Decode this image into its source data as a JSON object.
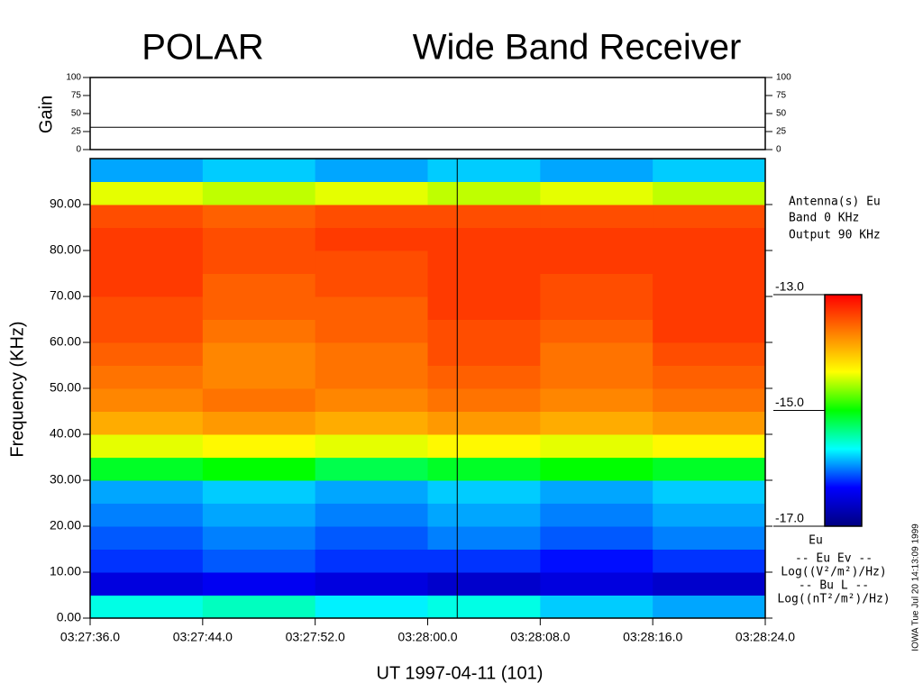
{
  "chart_data": {
    "type": "heatmap",
    "title_left": "POLAR",
    "title_right": "Wide Band Receiver",
    "xlabel": "UT 1997-04-11  (101)",
    "ylabel": "Frequency (KHz)",
    "xlim": [
      "03:27:36.0",
      "03:28:24.0"
    ],
    "xticks": [
      "03:27:36.0",
      "03:27:44.0",
      "03:27:52.0",
      "03:28:00.0",
      "03:28:08.0",
      "03:28:16.0",
      "03:28:24.0"
    ],
    "xbins": [
      "03:27:36.0",
      "03:27:44.0",
      "03:27:52.0",
      "03:28:00.0",
      "03:28:08.0",
      "03:28:16.0",
      "03:28:24.0"
    ],
    "ylim": [
      0,
      100
    ],
    "yticks": [
      {
        "value": 0,
        "label": "0.00"
      },
      {
        "value": 10,
        "label": "10.00"
      },
      {
        "value": 20,
        "label": "20.00"
      },
      {
        "value": 30,
        "label": "30.00"
      },
      {
        "value": 40,
        "label": "40.00"
      },
      {
        "value": 50,
        "label": "50.00"
      },
      {
        "value": 60,
        "label": "60.00"
      },
      {
        "value": 70,
        "label": "70.00"
      },
      {
        "value": 80,
        "label": "80.00"
      },
      {
        "value": 90,
        "label": "90.00"
      }
    ],
    "ybins": [
      0,
      5,
      10,
      15,
      20,
      25,
      30,
      35,
      40,
      45,
      50,
      55,
      60,
      65,
      70,
      75,
      80,
      85,
      90,
      95,
      100
    ],
    "z": [
      [
        -15.6,
        -15.5,
        -15.7,
        -15.6,
        -15.8,
        -15.9
      ],
      [
        -16.5,
        -16.4,
        -16.5,
        -16.6,
        -16.5,
        -16.6
      ],
      [
        -16.2,
        -16.1,
        -16.2,
        -16.2,
        -16.3,
        -16.2
      ],
      [
        -16.1,
        -16.0,
        -16.1,
        -16.0,
        -16.1,
        -16.0
      ],
      [
        -16.0,
        -15.9,
        -16.0,
        -15.9,
        -16.0,
        -15.9
      ],
      [
        -15.9,
        -15.8,
        -15.9,
        -15.8,
        -15.9,
        -15.8
      ],
      [
        -15.1,
        -15.0,
        -15.2,
        -15.1,
        -15.0,
        -15.1
      ],
      [
        -14.4,
        -14.3,
        -14.4,
        -14.3,
        -14.4,
        -14.3
      ],
      [
        -13.9,
        -13.8,
        -13.9,
        -13.8,
        -13.9,
        -13.8
      ],
      [
        -13.7,
        -13.6,
        -13.7,
        -13.6,
        -13.7,
        -13.6
      ],
      [
        -13.6,
        -13.7,
        -13.6,
        -13.5,
        -13.6,
        -13.5
      ],
      [
        -13.5,
        -13.7,
        -13.6,
        -13.4,
        -13.6,
        -13.4
      ],
      [
        -13.4,
        -13.6,
        -13.5,
        -13.4,
        -13.5,
        -13.3
      ],
      [
        -13.4,
        -13.5,
        -13.5,
        -13.3,
        -13.4,
        -13.3
      ],
      [
        -13.3,
        -13.5,
        -13.4,
        -13.3,
        -13.4,
        -13.3
      ],
      [
        -13.3,
        -13.4,
        -13.4,
        -13.3,
        -13.3,
        -13.3
      ],
      [
        -13.3,
        -13.4,
        -13.3,
        -13.3,
        -13.3,
        -13.3
      ],
      [
        -13.4,
        -13.5,
        -13.4,
        -13.4,
        -13.4,
        -13.4
      ],
      [
        -14.4,
        -14.5,
        -14.4,
        -14.5,
        -14.4,
        -14.5
      ],
      [
        -15.9,
        -15.8,
        -15.9,
        -15.8,
        -15.9,
        -15.8
      ]
    ],
    "colormap": [
      "#000080",
      "#0000ff",
      "#00ffff",
      "#00ff00",
      "#ffff00",
      "#ff8000",
      "#ff0000"
    ],
    "clim": [
      -17,
      -13
    ],
    "cticks": [
      {
        "value": -13,
        "label": "-13.0"
      },
      {
        "value": -15,
        "label": "-15.0"
      },
      {
        "value": -17,
        "label": "-17.0"
      }
    ],
    "colorbar_label": "Eu",
    "marker_time": "03:28:02.1",
    "annotations": [
      "Antenna(s) Eu",
      "Band 0 KHz",
      "Output 90 KHz"
    ],
    "legend_lines": [
      "-- Eu Ev --",
      "Log((V²/m²)/Hz)",
      "-- Bu L --",
      "Log((nT²/m²)/Hz)"
    ],
    "footer": "IOWA Tue Jul 20 14:13:09 1999",
    "gain": {
      "ylabel": "Gain",
      "ylim": [
        0,
        100
      ],
      "yticks": [
        0,
        25,
        50,
        75,
        100
      ],
      "x": [
        "03:27:36.0",
        "03:28:24.0"
      ],
      "values": [
        31,
        31
      ]
    }
  }
}
